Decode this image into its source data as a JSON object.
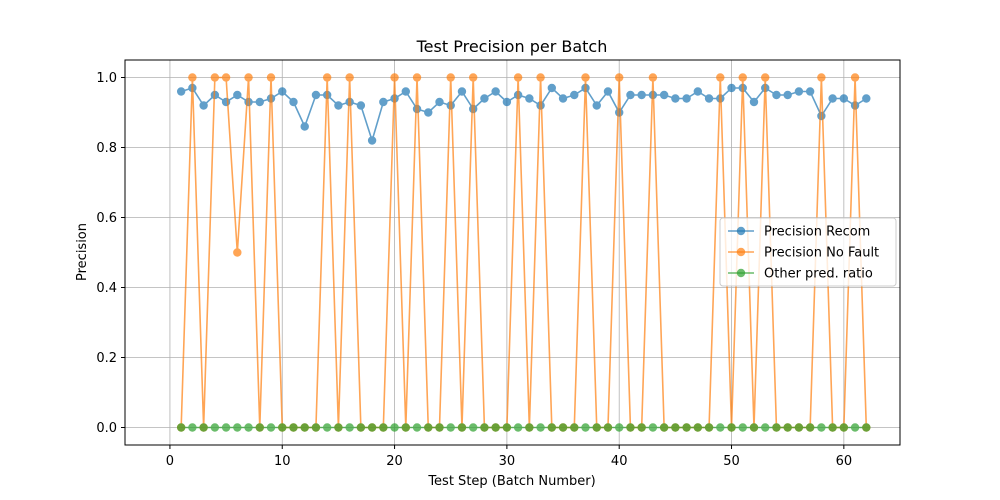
{
  "chart_data": {
    "type": "line",
    "title": "Test Precision per Batch",
    "xlabel": "Test Step (Batch Number)",
    "ylabel": "Precision",
    "xlim": [
      -4,
      65
    ],
    "ylim": [
      -0.05,
      1.05
    ],
    "xticks": [
      0,
      10,
      20,
      30,
      40,
      50,
      60
    ],
    "yticks": [
      0.0,
      0.2,
      0.4,
      0.6,
      0.8,
      1.0
    ],
    "grid": true,
    "legend_position": "center-right",
    "x": [
      1,
      2,
      3,
      4,
      5,
      6,
      7,
      8,
      9,
      10,
      11,
      12,
      13,
      14,
      15,
      16,
      17,
      18,
      19,
      20,
      21,
      22,
      23,
      24,
      25,
      26,
      27,
      28,
      29,
      30,
      31,
      32,
      33,
      34,
      35,
      36,
      37,
      38,
      39,
      40,
      41,
      42,
      43,
      44,
      45,
      46,
      47,
      48,
      49,
      50,
      51,
      52,
      53,
      54,
      55,
      56,
      57,
      58,
      59,
      60,
      61,
      62
    ],
    "series": [
      {
        "name": "Precision Recom",
        "color": "#1f77b4",
        "values": [
          0.96,
          0.97,
          0.92,
          0.95,
          0.93,
          0.95,
          0.93,
          0.93,
          0.94,
          0.96,
          0.93,
          0.86,
          0.95,
          0.95,
          0.92,
          0.93,
          0.92,
          0.82,
          0.93,
          0.94,
          0.96,
          0.91,
          0.9,
          0.93,
          0.92,
          0.96,
          0.91,
          0.94,
          0.96,
          0.93,
          0.95,
          0.94,
          0.92,
          0.97,
          0.94,
          0.95,
          0.97,
          0.92,
          0.96,
          0.9,
          0.95,
          0.95,
          0.95,
          0.95,
          0.94,
          0.94,
          0.96,
          0.94,
          0.94,
          0.97,
          0.97,
          0.93,
          0.97,
          0.95,
          0.95,
          0.96,
          0.96,
          0.89,
          0.94,
          0.94,
          0.92,
          0.94
        ]
      },
      {
        "name": "Precision No Fault",
        "color": "#ff7f0e",
        "values": [
          0,
          1,
          0,
          1,
          1,
          0.5,
          1,
          0,
          1,
          0,
          0,
          0,
          0,
          1,
          0,
          1,
          0,
          0,
          0,
          1,
          0,
          1,
          0,
          0,
          1,
          0,
          1,
          0,
          0,
          0,
          1,
          0,
          1,
          0,
          0,
          0,
          1,
          0,
          0,
          1,
          0,
          0,
          1,
          0,
          0,
          0,
          0,
          0,
          1,
          0,
          1,
          0,
          1,
          0,
          0,
          0,
          0,
          1,
          0,
          0,
          1,
          0
        ]
      },
      {
        "name": "Other pred. ratio",
        "color": "#2ca02c",
        "values": [
          0,
          0,
          0,
          0,
          0,
          0,
          0,
          0,
          0,
          0,
          0,
          0,
          0,
          0,
          0,
          0,
          0,
          0,
          0,
          0,
          0,
          0,
          0,
          0,
          0,
          0,
          0,
          0,
          0,
          0,
          0,
          0,
          0,
          0,
          0,
          0,
          0,
          0,
          0,
          0,
          0,
          0,
          0,
          0,
          0,
          0,
          0,
          0,
          0,
          0,
          0,
          0,
          0,
          0,
          0,
          0,
          0,
          0,
          0,
          0,
          0,
          0
        ]
      }
    ]
  }
}
